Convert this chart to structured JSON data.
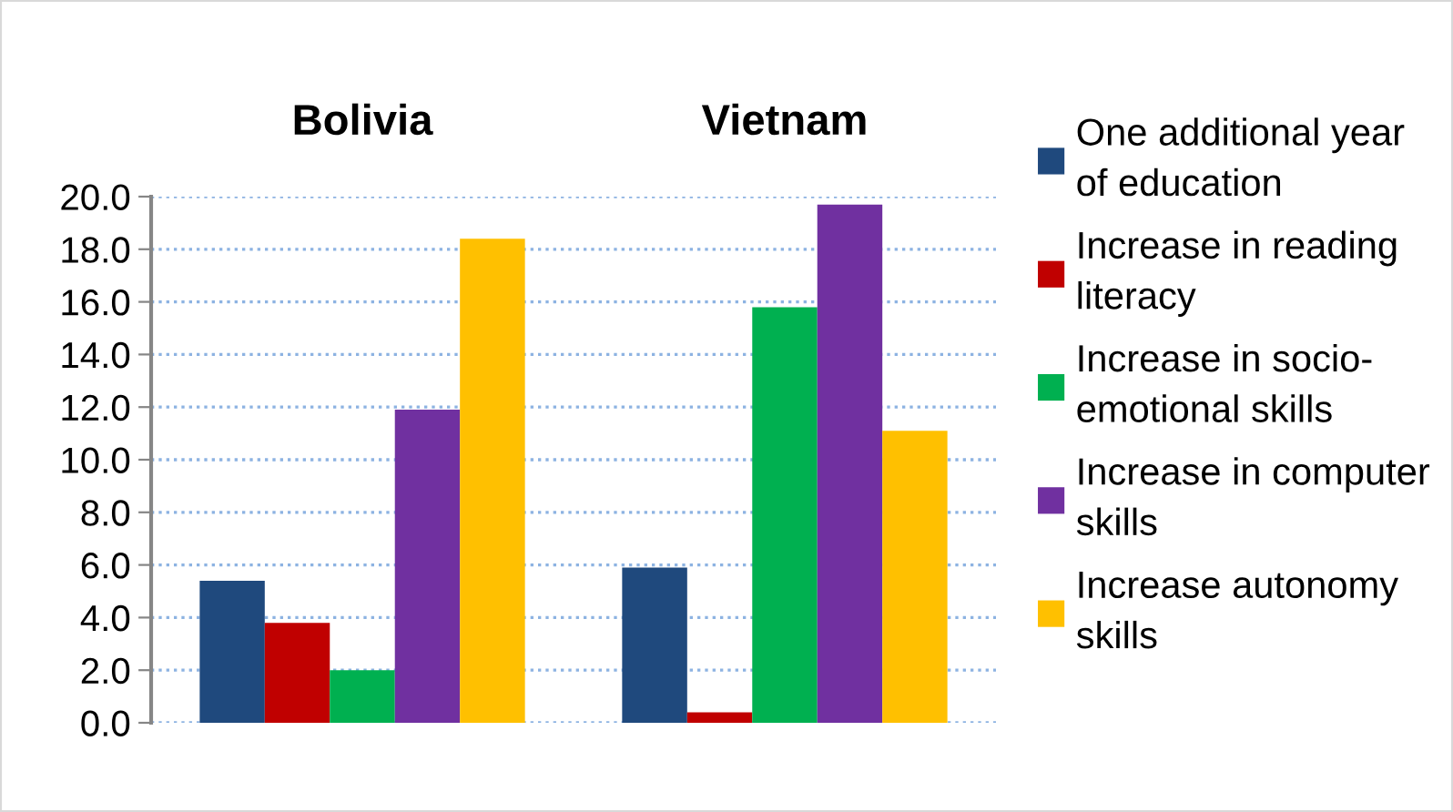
{
  "chart_data": {
    "type": "bar",
    "categories": [
      "Bolivia",
      "Vietnam"
    ],
    "series": [
      {
        "name": "One additional year of education",
        "color": "#1f497d",
        "values": [
          5.4,
          5.9
        ]
      },
      {
        "name": "Increase in reading literacy",
        "color": "#c00000",
        "values": [
          3.8,
          0.4
        ]
      },
      {
        "name": "Increase in socio-emotional skills",
        "color": "#00b050",
        "values": [
          2.0,
          15.8
        ]
      },
      {
        "name": "Increase in computer skills",
        "color": "#7030a0",
        "values": [
          11.9,
          19.7
        ]
      },
      {
        "name": "Increase autonomy skills",
        "color": "#ffc000",
        "values": [
          18.4,
          11.1
        ]
      }
    ],
    "ylim": [
      0,
      20
    ],
    "yticks": [
      {
        "value": 0,
        "label": "0.0"
      },
      {
        "value": 2,
        "label": "2.0"
      },
      {
        "value": 4,
        "label": "4.0"
      },
      {
        "value": 6,
        "label": "6.0"
      },
      {
        "value": 8,
        "label": "8.0"
      },
      {
        "value": 10,
        "label": "10.0"
      },
      {
        "value": 12,
        "label": "12.0"
      },
      {
        "value": 14,
        "label": "14.0"
      },
      {
        "value": 16,
        "label": "16.0"
      },
      {
        "value": 18,
        "label": "18.0"
      },
      {
        "value": 20,
        "label": "20.0"
      }
    ],
    "grid": "y",
    "legend": "right"
  }
}
